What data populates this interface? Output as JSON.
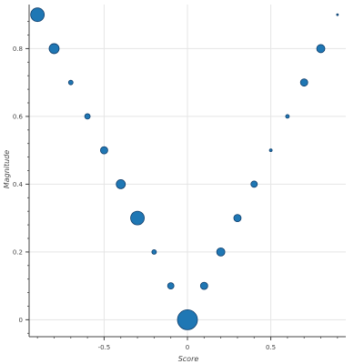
{
  "chart_data": {
    "type": "scatter",
    "title": "",
    "xlabel": "Score",
    "ylabel": "Magnitude",
    "xlim": [
      -0.95,
      0.95
    ],
    "ylim": [
      -0.05,
      0.93
    ],
    "xticks": [
      -0.5,
      0,
      0.5
    ],
    "xtick_labels": [
      "-0.5",
      "0",
      "0.5"
    ],
    "yticks": [
      0,
      0.2,
      0.4,
      0.6,
      0.8
    ],
    "ytick_labels": [
      "0",
      "0.2",
      "0.4",
      "0.6",
      "0.8"
    ],
    "grid": true,
    "colors": {
      "point_fill": "#1f77b4",
      "point_stroke": "#0f3d6b",
      "grid": "#e5e5e5",
      "axis": "#444444"
    },
    "points": [
      {
        "x": -0.9,
        "y": 0.9,
        "size": 15
      },
      {
        "x": -0.8,
        "y": 0.8,
        "size": 11
      },
      {
        "x": -0.7,
        "y": 0.7,
        "size": 5
      },
      {
        "x": -0.6,
        "y": 0.6,
        "size": 6
      },
      {
        "x": -0.5,
        "y": 0.5,
        "size": 8
      },
      {
        "x": -0.4,
        "y": 0.4,
        "size": 10
      },
      {
        "x": -0.3,
        "y": 0.3,
        "size": 15
      },
      {
        "x": -0.2,
        "y": 0.2,
        "size": 5
      },
      {
        "x": -0.1,
        "y": 0.1,
        "size": 7
      },
      {
        "x": 0.0,
        "y": 0.0,
        "size": 22
      },
      {
        "x": 0.1,
        "y": 0.1,
        "size": 8
      },
      {
        "x": 0.2,
        "y": 0.2,
        "size": 9
      },
      {
        "x": 0.3,
        "y": 0.3,
        "size": 8
      },
      {
        "x": 0.4,
        "y": 0.4,
        "size": 7
      },
      {
        "x": 0.5,
        "y": 0.5,
        "size": 3
      },
      {
        "x": 0.6,
        "y": 0.6,
        "size": 4
      },
      {
        "x": 0.7,
        "y": 0.7,
        "size": 8
      },
      {
        "x": 0.8,
        "y": 0.8,
        "size": 9
      },
      {
        "x": 0.9,
        "y": 0.9,
        "size": 2
      }
    ]
  }
}
